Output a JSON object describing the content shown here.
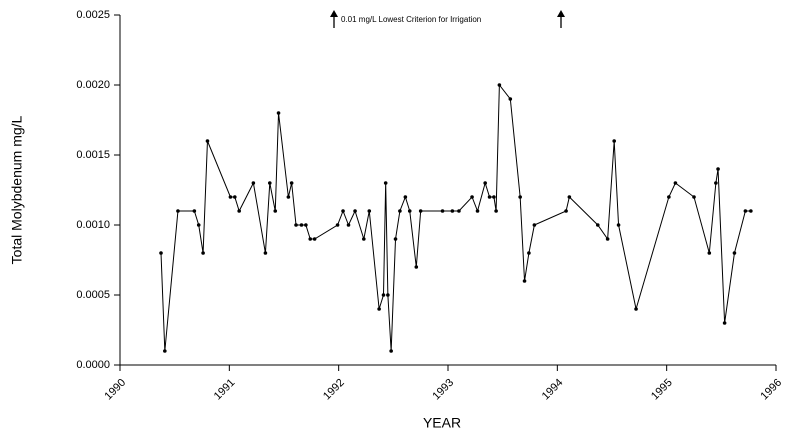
{
  "chart_data": {
    "type": "line",
    "annotation": "0.01 mg/L Lowest Criterion for Irrigation",
    "x_label": "YEAR",
    "y_label": "Total Molybdenum mg/L",
    "color": "#000000",
    "grid": false,
    "xlim": [
      1990,
      1996
    ],
    "xticks": [
      1990,
      1991,
      1992,
      1993,
      1994,
      1995,
      1996
    ],
    "ylim": [
      0,
      0.0025
    ],
    "yticks": [
      {
        "value": 0,
        "label": "0.0000"
      },
      {
        "value": 0.0005,
        "label": "0.0005"
      },
      {
        "value": 0.001,
        "label": "0.0010"
      },
      {
        "value": 0.0015,
        "label": "0.0015"
      },
      {
        "value": 0.002,
        "label": "0.0020"
      },
      {
        "value": 0.0025,
        "label": "0.0025"
      }
    ],
    "x": [
      1990.375,
      1990.41,
      1990.53,
      1990.68,
      1990.72,
      1990.76,
      1990.8,
      1991.01,
      1991.05,
      1991.09,
      1991.22,
      1991.33,
      1991.37,
      1991.42,
      1991.45,
      1991.54,
      1991.57,
      1991.61,
      1991.66,
      1991.7,
      1991.74,
      1991.78,
      1991.99,
      1992.04,
      1992.09,
      1992.15,
      1992.23,
      1992.28,
      1992.37,
      1992.41,
      1992.43,
      1992.45,
      1992.48,
      1992.52,
      1992.56,
      1992.61,
      1992.65,
      1992.71,
      1992.75,
      1992.95,
      1993.04,
      1993.1,
      1993.22,
      1993.27,
      1993.34,
      1993.38,
      1993.42,
      1993.44,
      1993.47,
      1993.57,
      1993.66,
      1993.7,
      1993.74,
      1993.79,
      1994.08,
      1994.11,
      1994.37,
      1994.46,
      1994.52,
      1994.56,
      1994.72,
      1995.02,
      1995.08,
      1995.25,
      1995.39,
      1995.45,
      1995.47,
      1995.53,
      1995.62,
      1995.72,
      1995.77
    ],
    "values": [
      0.0008,
      0.0001,
      0.0011,
      0.0011,
      0.001,
      0.0008,
      0.0016,
      0.0012,
      0.0012,
      0.0011,
      0.0013,
      0.0008,
      0.0013,
      0.0011,
      0.0018,
      0.0012,
      0.0013,
      0.001,
      0.001,
      0.001,
      0.0009,
      0.0009,
      0.001,
      0.0011,
      0.001,
      0.0011,
      0.0009,
      0.0011,
      0.0004,
      0.0005,
      0.0013,
      0.0005,
      0.0001,
      0.0009,
      0.0011,
      0.0012,
      0.0011,
      0.0007,
      0.0011,
      0.0011,
      0.0011,
      0.0011,
      0.0012,
      0.0011,
      0.0013,
      0.0012,
      0.0012,
      0.0011,
      0.002,
      0.0019,
      0.0012,
      0.0006,
      0.0008,
      0.001,
      0.0011,
      0.0012,
      0.001,
      0.0009,
      0.0016,
      0.001,
      0.0004,
      0.0012,
      0.0013,
      0.0012,
      0.0008,
      0.0013,
      0.0014,
      0.0003,
      0.0008,
      0.0011,
      0.0011
    ]
  }
}
